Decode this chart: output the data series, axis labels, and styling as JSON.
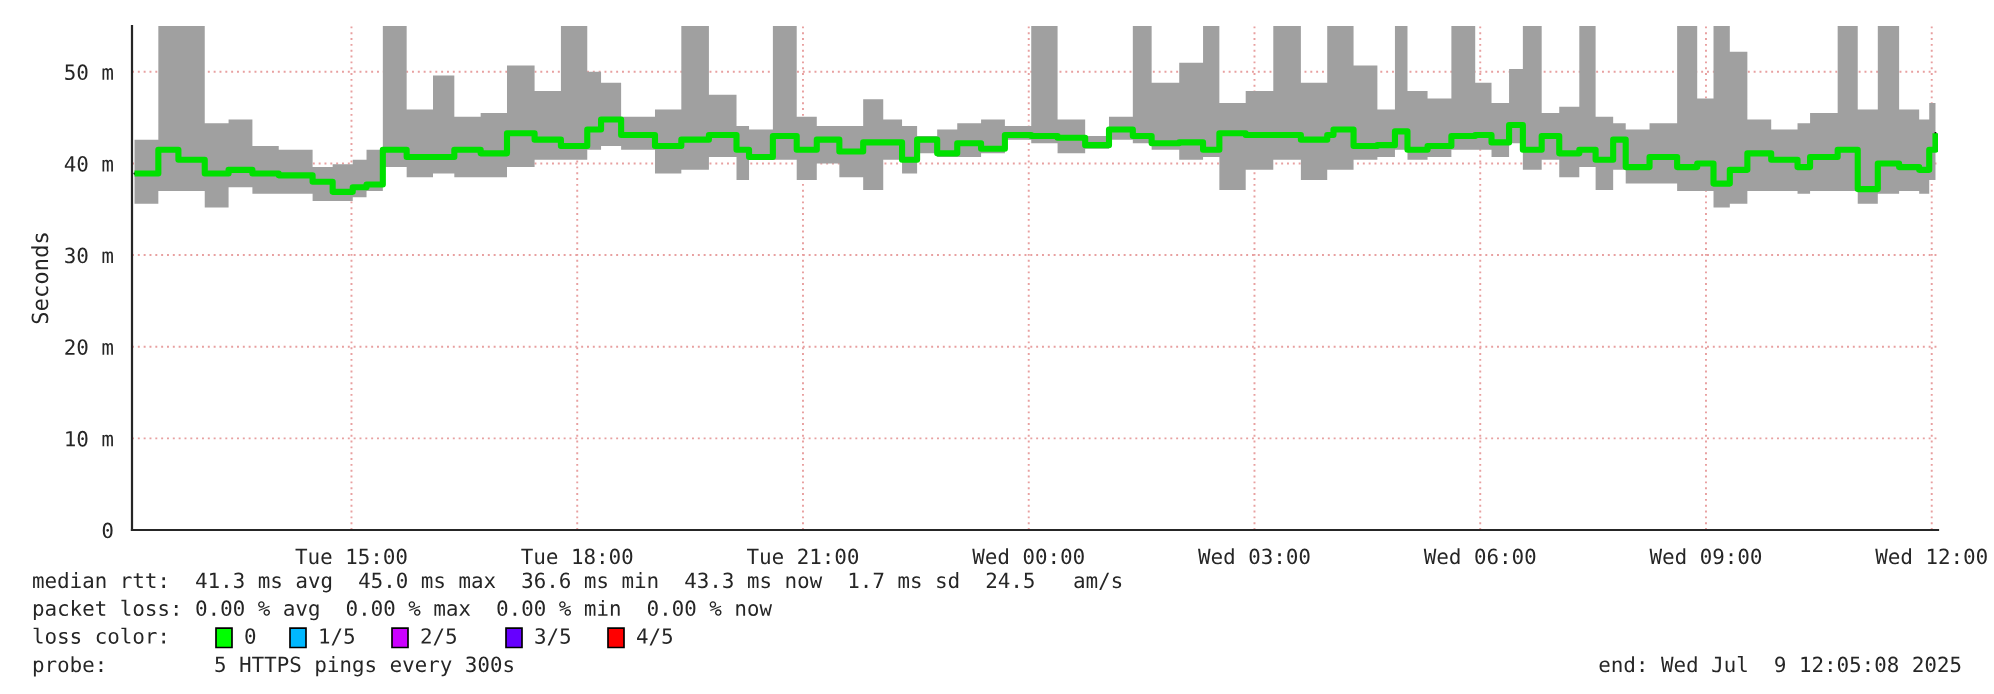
{
  "chart_data": {
    "type": "step",
    "ylabel": "Seconds",
    "xlim": [
      "2025-07-08T12:05",
      "2025-07-09T12:05"
    ],
    "xticks": [
      {
        "value": "2025-07-08T15:00",
        "label": "Tue 15:00"
      },
      {
        "value": "2025-07-08T18:00",
        "label": "Tue 18:00"
      },
      {
        "value": "2025-07-08T21:00",
        "label": "Tue 21:00"
      },
      {
        "value": "2025-07-09T00:00",
        "label": "Wed 00:00"
      },
      {
        "value": "2025-07-09T03:00",
        "label": "Wed 03:00"
      },
      {
        "value": "2025-07-09T06:00",
        "label": "Wed 06:00"
      },
      {
        "value": "2025-07-09T09:00",
        "label": "Wed 09:00"
      },
      {
        "value": "2025-07-09T12:00",
        "label": "Wed 12:00"
      }
    ],
    "ylim": [
      0,
      55
    ],
    "yticks": [
      0,
      {
        "value": 10,
        "label": "10 m"
      },
      {
        "value": 20,
        "label": "20 m"
      },
      {
        "value": 30,
        "label": "30 m"
      },
      {
        "value": 40,
        "label": "40 m"
      },
      {
        "value": 50,
        "label": "50 m"
      }
    ],
    "grid": true,
    "legend": false,
    "series": [
      {
        "color": "#00e000",
        "x": [
          "2025-07-08T12:07",
          "2025-07-08T12:26",
          "2025-07-08T12:42",
          "2025-07-08T13:03",
          "2025-07-08T13:22",
          "2025-07-08T13:41",
          "2025-07-08T14:02",
          "2025-07-08T14:29",
          "2025-07-08T14:45",
          "2025-07-08T15:01",
          "2025-07-08T15:12",
          "2025-07-08T15:25",
          "2025-07-08T15:44",
          "2025-07-08T16:05",
          "2025-07-08T16:22",
          "2025-07-08T16:43",
          "2025-07-08T17:04",
          "2025-07-08T17:26",
          "2025-07-08T17:47",
          "2025-07-08T18:08",
          "2025-07-08T18:19",
          "2025-07-08T18:35",
          "2025-07-08T19:02",
          "2025-07-08T19:23",
          "2025-07-08T19:45",
          "2025-07-08T20:07",
          "2025-07-08T20:17",
          "2025-07-08T20:36",
          "2025-07-08T20:55",
          "2025-07-08T21:11",
          "2025-07-08T21:29",
          "2025-07-08T21:48",
          "2025-07-08T22:04",
          "2025-07-08T22:19",
          "2025-07-08T22:31",
          "2025-07-08T22:47",
          "2025-07-08T23:03",
          "2025-07-08T23:22",
          "2025-07-08T23:41",
          "2025-07-09T00:02",
          "2025-07-09T00:23",
          "2025-07-09T00:45",
          "2025-07-09T01:04",
          "2025-07-09T01:23",
          "2025-07-09T01:38",
          "2025-07-09T02:00",
          "2025-07-09T02:19",
          "2025-07-09T02:32",
          "2025-07-09T02:53",
          "2025-07-09T03:15",
          "2025-07-09T03:37",
          "2025-07-09T03:58",
          "2025-07-09T04:03",
          "2025-07-09T04:19",
          "2025-07-09T04:38",
          "2025-07-09T04:52",
          "2025-07-09T05:02",
          "2025-07-09T05:18",
          "2025-07-09T05:37",
          "2025-07-09T05:56",
          "2025-07-09T06:09",
          "2025-07-09T06:23",
          "2025-07-09T06:34",
          "2025-07-09T06:49",
          "2025-07-09T07:03",
          "2025-07-09T07:19",
          "2025-07-09T07:32",
          "2025-07-09T07:46",
          "2025-07-09T07:56",
          "2025-07-09T08:15",
          "2025-07-09T08:37",
          "2025-07-09T08:53",
          "2025-07-09T09:06",
          "2025-07-09T09:19",
          "2025-07-09T09:33",
          "2025-07-09T09:52",
          "2025-07-09T10:13",
          "2025-07-09T10:23",
          "2025-07-09T10:45",
          "2025-07-09T11:01",
          "2025-07-09T11:17",
          "2025-07-09T11:34",
          "2025-07-09T11:50",
          "2025-07-09T11:58",
          "2025-07-09T12:03"
        ],
        "values": [
          38.9,
          41.5,
          40.4,
          38.9,
          39.3,
          38.9,
          38.7,
          38.0,
          36.9,
          37.4,
          37.7,
          41.5,
          40.7,
          40.7,
          41.5,
          41.1,
          43.3,
          42.6,
          41.9,
          43.7,
          44.8,
          43.1,
          41.9,
          42.6,
          43.1,
          41.5,
          40.7,
          43.0,
          41.5,
          42.6,
          41.3,
          42.3,
          42.3,
          40.4,
          42.6,
          41.1,
          42.2,
          41.6,
          43.1,
          43.0,
          42.8,
          42.0,
          43.7,
          43.0,
          42.2,
          42.3,
          41.5,
          43.3,
          43.1,
          43.1,
          42.6,
          43.1,
          43.7,
          41.9,
          42.0,
          43.5,
          41.5,
          41.9,
          43.0,
          43.1,
          42.3,
          44.2,
          41.5,
          43.0,
          41.1,
          41.5,
          40.4,
          42.6,
          39.6,
          40.7,
          39.6,
          40.0,
          37.8,
          39.3,
          41.1,
          40.4,
          39.6,
          40.7,
          41.5,
          37.2,
          40.0,
          39.6,
          39.3,
          41.5,
          43.3
        ],
        "lower": [
          35.6,
          37.0,
          37.0,
          35.2,
          37.4,
          36.7,
          36.7,
          35.9,
          35.9,
          36.3,
          37.0,
          39.6,
          38.5,
          38.9,
          38.5,
          38.5,
          39.6,
          40.4,
          40.4,
          41.5,
          41.9,
          41.5,
          38.9,
          39.3,
          40.7,
          38.2,
          40.4,
          40.4,
          38.2,
          40.0,
          38.5,
          37.1,
          40.4,
          38.9,
          41.1,
          40.7,
          40.7,
          41.1,
          42.6,
          42.2,
          41.1,
          41.6,
          42.6,
          42.2,
          41.5,
          40.4,
          40.7,
          37.1,
          39.3,
          40.4,
          38.2,
          39.3,
          39.3,
          40.4,
          40.7,
          41.5,
          40.4,
          40.7,
          41.5,
          41.5,
          40.7,
          42.2,
          39.3,
          40.4,
          38.5,
          39.6,
          37.1,
          39.3,
          37.8,
          37.8,
          37.0,
          37.0,
          35.2,
          35.6,
          37.0,
          37.0,
          36.7,
          37.0,
          37.0,
          35.6,
          36.7,
          37.0,
          36.7,
          38.2,
          39.6
        ],
        "upper": [
          42.6,
          55,
          55,
          44.4,
          44.8,
          41.9,
          41.5,
          39.6,
          39.9,
          40.4,
          41.5,
          55,
          45.9,
          49.6,
          45.1,
          45.5,
          50.7,
          47.9,
          55,
          50.0,
          48.8,
          45.1,
          45.9,
          55,
          47.5,
          44.1,
          43.7,
          55,
          45.1,
          44.1,
          44.1,
          47.0,
          44.8,
          44.1,
          43.0,
          43.7,
          44.4,
          44.8,
          44.1,
          55,
          44.8,
          43.0,
          45.1,
          55,
          48.8,
          51.0,
          55,
          46.6,
          47.9,
          55,
          48.8,
          55,
          55,
          50.7,
          45.9,
          55,
          47.9,
          47.1,
          55,
          48.8,
          46.6,
          50.3,
          55,
          45.5,
          46.2,
          55,
          45.1,
          44.4,
          43.7,
          44.4,
          55,
          47.1,
          55,
          52.2,
          44.8,
          43.7,
          44.4,
          45.5,
          55,
          45.9,
          55,
          45.9,
          44.8,
          46.6,
          46.6
        ]
      }
    ],
    "annotations": [
      "median rtt:  41.3 ms avg  45.0 ms max  36.6 ms min  43.3 ms now  1.7 ms sd  24.5   am/s",
      "packet loss: 0.00 % avg  0.00 % max  0.00 % min  0.00 % now",
      "loss color:",
      "0",
      "1/5",
      "2/5",
      "3/5",
      "4/5",
      "probe:",
      "5 HTTPS pings every 300s",
      "end: Wed Jul  9 12:05:08 2025"
    ]
  }
}
